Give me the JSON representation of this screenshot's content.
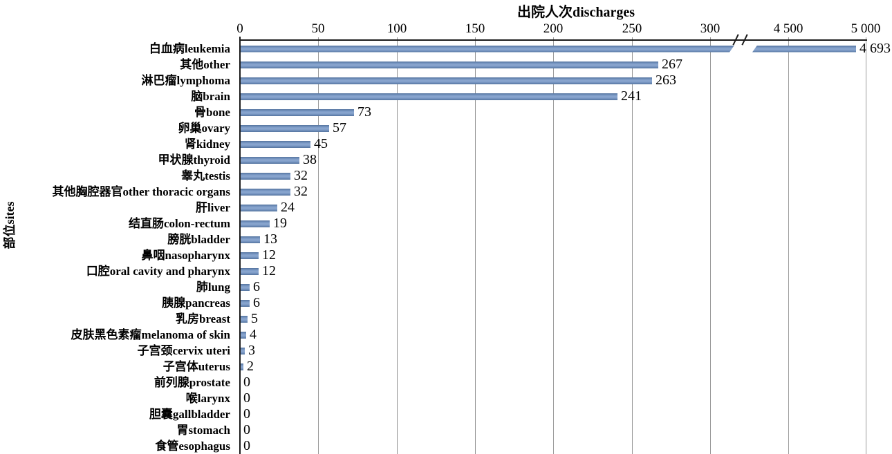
{
  "chart_data": {
    "type": "bar",
    "orientation": "horizontal",
    "title": "出院人次discharges",
    "title_position": "top",
    "ylabel": "部位sites",
    "grid": true,
    "bar_color": "#7495c4",
    "x_ticks": [
      "0",
      "50",
      "100",
      "150",
      "200",
      "250",
      "300",
      "4 500",
      "5 000"
    ],
    "axis_break": {
      "after_value": 300,
      "resume_value": 4500,
      "symbol": "//"
    },
    "xlim_linear": [
      0,
      300
    ],
    "xlim_compressed": [
      4500,
      5000
    ],
    "categories": [
      "白血病leukemia",
      "其他other",
      "淋巴瘤lymphoma",
      "脑brain",
      "骨bone",
      "卵巢ovary",
      "肾kidney",
      "甲状腺thyroid",
      "睾丸testis",
      "其他胸腔器官other thoracic organs",
      "肝liver",
      "结直肠colon-rectum",
      "膀胱bladder",
      "鼻咽nasopharynx",
      "口腔oral cavity and pharynx",
      "肺lung",
      "胰腺pancreas",
      "乳房breast",
      "皮肤黑色素瘤melanoma of skin",
      "子宫颈cervix uteri",
      "子宫体uterus",
      "前列腺prostate",
      "喉larynx",
      "胆囊gallbladder",
      "胃stomach",
      "食管esophagus"
    ],
    "values": [
      4693,
      267,
      263,
      241,
      73,
      57,
      45,
      38,
      32,
      32,
      24,
      19,
      13,
      12,
      12,
      6,
      6,
      5,
      4,
      3,
      2,
      0,
      0,
      0,
      0,
      0
    ],
    "value_labels": [
      "4 693",
      "267",
      "263",
      "241",
      "73",
      "57",
      "45",
      "38",
      "32",
      "32",
      "24",
      "19",
      "13",
      "12",
      "12",
      "6",
      "6",
      "5",
      "4",
      "3",
      "2",
      "0",
      "0",
      "0",
      "0",
      "0"
    ]
  }
}
